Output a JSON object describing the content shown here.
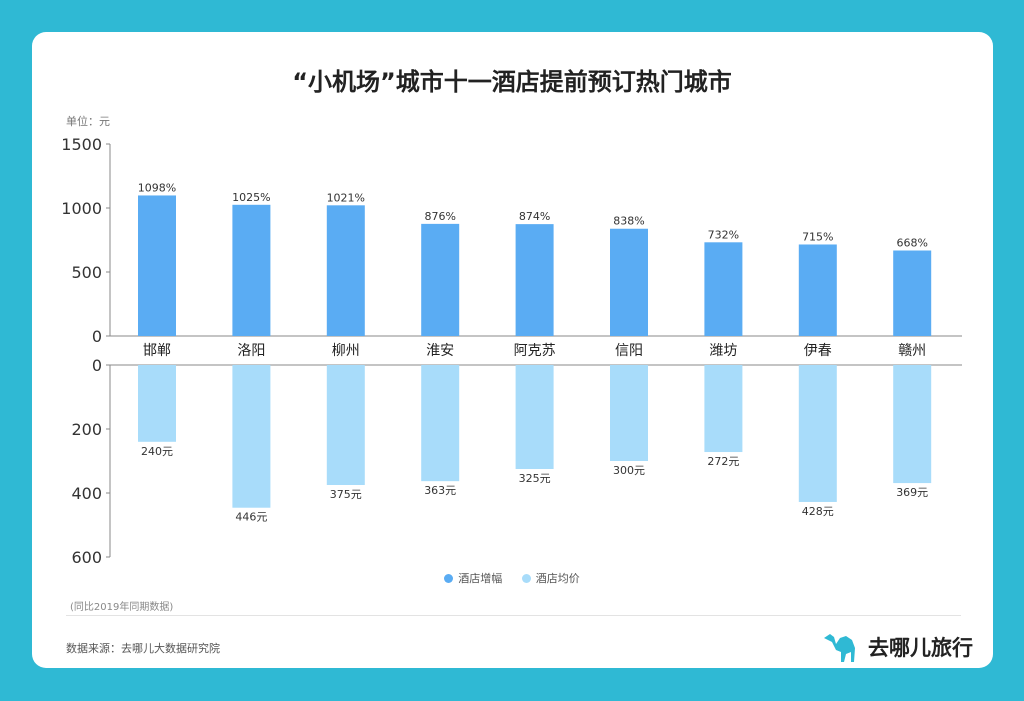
{
  "title": "“小机场”城市十一酒店提前预订热门城市",
  "unit_label": "单位：元",
  "note": "(同比2019年同期数据)",
  "source": "数据来源：去哪儿大数据研究院",
  "brand": "去哪儿旅行",
  "colors": {
    "background": "#2fb9d4",
    "increase": "#5aacf3",
    "price": "#a8dcfa"
  },
  "legend": [
    {
      "label": "酒店增幅",
      "color": "#5aacf3"
    },
    {
      "label": "酒店均价",
      "color": "#a8dcfa"
    }
  ],
  "chart_data": [
    {
      "type": "bar",
      "categories": [
        "邯郸",
        "洛阳",
        "柳州",
        "淮安",
        "阿克苏",
        "信阳",
        "潍坊",
        "伊春",
        "赣州"
      ],
      "series": [
        {
          "name": "酒店增幅",
          "values": [
            1098,
            1025,
            1021,
            876,
            874,
            838,
            732,
            715,
            668
          ]
        }
      ],
      "data_labels": [
        "1098%",
        "1025%",
        "1021%",
        "876%",
        "874%",
        "838%",
        "732%",
        "715%",
        "668%"
      ],
      "ylim": [
        0,
        1500
      ],
      "yticks": [
        "0",
        "500",
        "1000",
        "1500"
      ]
    },
    {
      "type": "bar",
      "orientation": "downward",
      "categories": [
        "邯郸",
        "洛阳",
        "柳州",
        "淮安",
        "阿克苏",
        "信阳",
        "潍坊",
        "伊春",
        "赣州"
      ],
      "series": [
        {
          "name": "酒店均价",
          "values": [
            240,
            446,
            375,
            363,
            325,
            300,
            272,
            428,
            369
          ]
        }
      ],
      "data_labels": [
        "240元",
        "446元",
        "375元",
        "363元",
        "325元",
        "300元",
        "272元",
        "428元",
        "369元"
      ],
      "ylim": [
        0,
        600
      ],
      "yticks": [
        "0",
        "200",
        "400",
        "600"
      ]
    }
  ]
}
